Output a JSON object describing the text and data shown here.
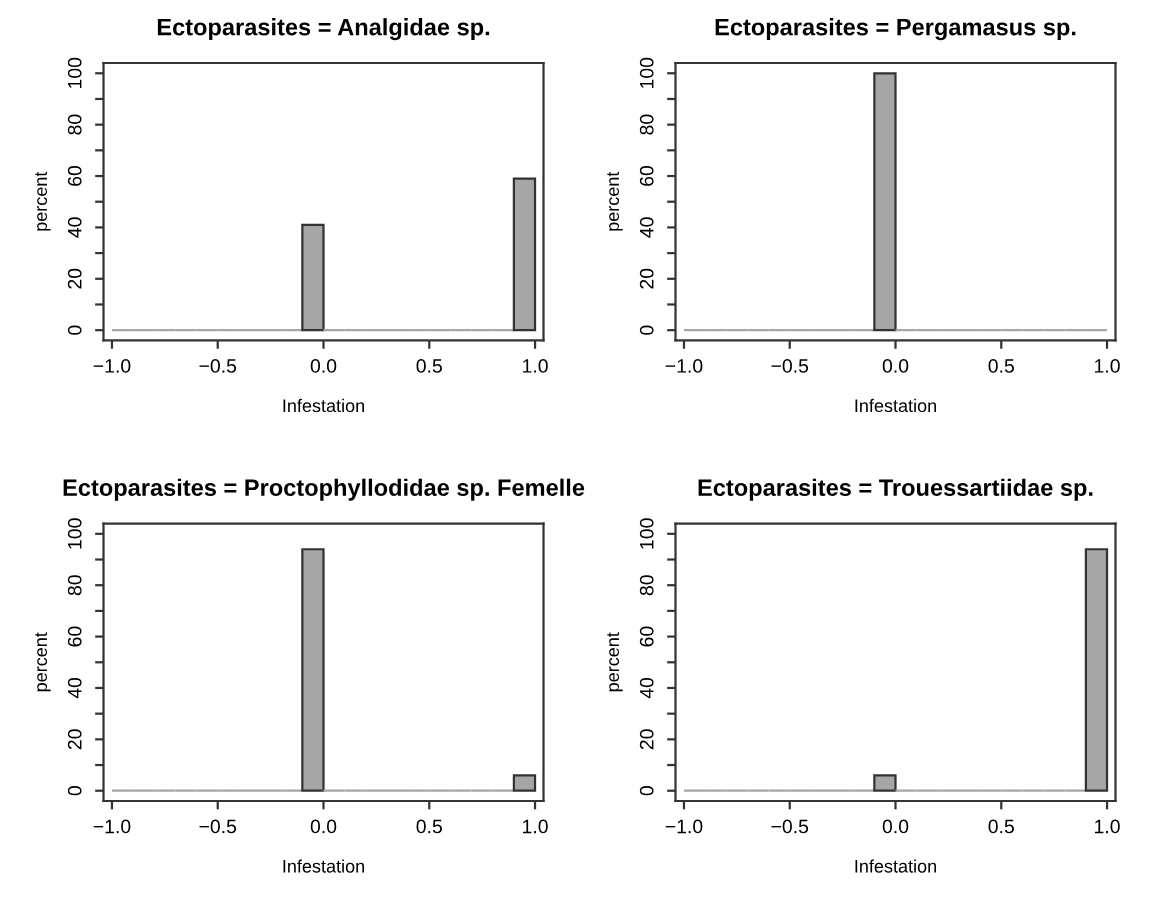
{
  "chart_data": [
    {
      "type": "histogram",
      "title": "Ectoparasites = Analgidae sp.",
      "xlabel": "Infestation",
      "ylabel": "percent",
      "color": "#a6a6a6",
      "bins": [
        -1.0,
        -0.9,
        -0.8,
        -0.7,
        -0.6,
        -0.5,
        -0.4,
        -0.3,
        -0.2,
        -0.1,
        0.0,
        0.1,
        0.2,
        0.3,
        0.4,
        0.5,
        0.6,
        0.7,
        0.8,
        0.9,
        1.0
      ],
      "values": [
        0,
        0,
        0,
        0,
        0,
        0,
        0,
        0,
        0,
        41,
        0,
        0,
        0,
        0,
        0,
        0,
        0,
        0,
        0,
        59
      ],
      "xlim": [
        -1.04,
        1.04
      ],
      "ylim": [
        -4,
        104
      ],
      "xticks": [
        {
          "value": -1,
          "label": "−1.0"
        },
        {
          "value": -0.5,
          "label": "−0.5"
        },
        {
          "value": 0,
          "label": "0.0"
        },
        {
          "value": 0.5,
          "label": "0.5"
        },
        {
          "value": 1,
          "label": "1.0"
        }
      ],
      "yticks": [
        0,
        {
          "value": 10,
          "label": null
        },
        20,
        {
          "value": 30,
          "label": null
        },
        40,
        {
          "value": 50,
          "label": null
        },
        60,
        {
          "value": 70,
          "label": null
        },
        80,
        {
          "value": 90,
          "label": null
        },
        100
      ]
    },
    {
      "type": "histogram",
      "title": "Ectoparasites = Pergamasus sp.",
      "xlabel": "Infestation",
      "ylabel": "percent",
      "color": "#a6a6a6",
      "bins": [
        -1.0,
        -0.9,
        -0.8,
        -0.7,
        -0.6,
        -0.5,
        -0.4,
        -0.3,
        -0.2,
        -0.1,
        0.0,
        0.1,
        0.2,
        0.3,
        0.4,
        0.5,
        0.6,
        0.7,
        0.8,
        0.9,
        1.0
      ],
      "values": [
        0,
        0,
        0,
        0,
        0,
        0,
        0,
        0,
        0,
        100,
        0,
        0,
        0,
        0,
        0,
        0,
        0,
        0,
        0,
        0
      ],
      "xlim": [
        -1.04,
        1.04
      ],
      "ylim": [
        -4,
        104
      ],
      "xticks": [
        {
          "value": -1,
          "label": "−1.0"
        },
        {
          "value": -0.5,
          "label": "−0.5"
        },
        {
          "value": 0,
          "label": "0.0"
        },
        {
          "value": 0.5,
          "label": "0.5"
        },
        {
          "value": 1,
          "label": "1.0"
        }
      ],
      "yticks": [
        0,
        {
          "value": 10,
          "label": null
        },
        20,
        {
          "value": 30,
          "label": null
        },
        40,
        {
          "value": 50,
          "label": null
        },
        60,
        {
          "value": 70,
          "label": null
        },
        80,
        {
          "value": 90,
          "label": null
        },
        100
      ]
    },
    {
      "type": "histogram",
      "title": "Ectoparasites = Proctophyllodidae sp. Femelle",
      "xlabel": "Infestation",
      "ylabel": "percent",
      "color": "#a6a6a6",
      "bins": [
        -1.0,
        -0.9,
        -0.8,
        -0.7,
        -0.6,
        -0.5,
        -0.4,
        -0.3,
        -0.2,
        -0.1,
        0.0,
        0.1,
        0.2,
        0.3,
        0.4,
        0.5,
        0.6,
        0.7,
        0.8,
        0.9,
        1.0
      ],
      "values": [
        0,
        0,
        0,
        0,
        0,
        0,
        0,
        0,
        0,
        94,
        0,
        0,
        0,
        0,
        0,
        0,
        0,
        0,
        0,
        6
      ],
      "xlim": [
        -1.04,
        1.04
      ],
      "ylim": [
        -4,
        104
      ],
      "xticks": [
        {
          "value": -1,
          "label": "−1.0"
        },
        {
          "value": -0.5,
          "label": "−0.5"
        },
        {
          "value": 0,
          "label": "0.0"
        },
        {
          "value": 0.5,
          "label": "0.5"
        },
        {
          "value": 1,
          "label": "1.0"
        }
      ],
      "yticks": [
        0,
        {
          "value": 10,
          "label": null
        },
        20,
        {
          "value": 30,
          "label": null
        },
        40,
        {
          "value": 50,
          "label": null
        },
        60,
        {
          "value": 70,
          "label": null
        },
        80,
        {
          "value": 90,
          "label": null
        },
        100
      ]
    },
    {
      "type": "histogram",
      "title": "Ectoparasites = Trouessartiidae sp.",
      "xlabel": "Infestation",
      "ylabel": "percent",
      "color": "#a6a6a6",
      "bins": [
        -1.0,
        -0.9,
        -0.8,
        -0.7,
        -0.6,
        -0.5,
        -0.4,
        -0.3,
        -0.2,
        -0.1,
        0.0,
        0.1,
        0.2,
        0.3,
        0.4,
        0.5,
        0.6,
        0.7,
        0.8,
        0.9,
        1.0
      ],
      "values": [
        0,
        0,
        0,
        0,
        0,
        0,
        0,
        0,
        0,
        6,
        0,
        0,
        0,
        0,
        0,
        0,
        0,
        0,
        0,
        94
      ],
      "xlim": [
        -1.04,
        1.04
      ],
      "ylim": [
        -4,
        104
      ],
      "xticks": [
        {
          "value": -1,
          "label": "−1.0"
        },
        {
          "value": -0.5,
          "label": "−0.5"
        },
        {
          "value": 0,
          "label": "0.0"
        },
        {
          "value": 0.5,
          "label": "0.5"
        },
        {
          "value": 1,
          "label": "1.0"
        }
      ],
      "yticks": [
        0,
        {
          "value": 10,
          "label": null
        },
        20,
        {
          "value": 30,
          "label": null
        },
        40,
        {
          "value": 50,
          "label": null
        },
        60,
        {
          "value": 70,
          "label": null
        },
        80,
        {
          "value": 90,
          "label": null
        },
        100
      ]
    }
  ]
}
